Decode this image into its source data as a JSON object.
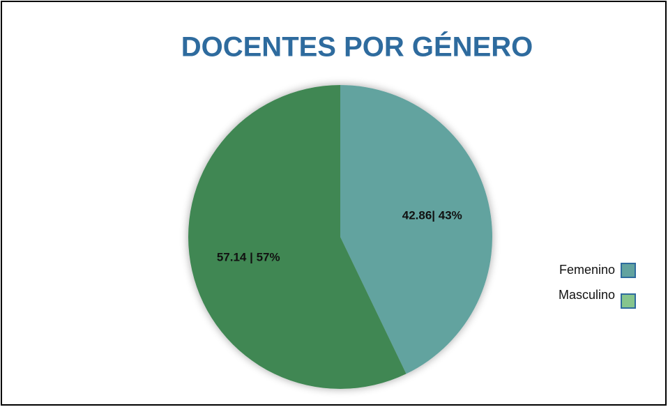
{
  "chart_data": {
    "type": "pie",
    "title": "DOCENTES POR GÉNERO",
    "categories": [
      "Femenino",
      "Masculino"
    ],
    "values": [
      42.86,
      57.14
    ],
    "value_labels": [
      "42.86| 43%",
      "57.14 | 57%"
    ],
    "colors": [
      "#62a39f",
      "#3f8753"
    ],
    "legend_colors": [
      "#62a39f",
      "#86c58d"
    ],
    "legend": "right"
  }
}
